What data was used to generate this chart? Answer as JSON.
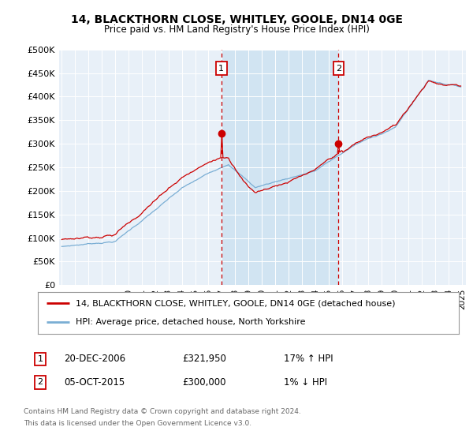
{
  "title1": "14, BLACKTHORN CLOSE, WHITLEY, GOOLE, DN14 0GE",
  "title2": "Price paid vs. HM Land Registry's House Price Index (HPI)",
  "legend1": "14, BLACKTHORN CLOSE, WHITLEY, GOOLE, DN14 0GE (detached house)",
  "legend2": "HPI: Average price, detached house, North Yorkshire",
  "sale1_date": "20-DEC-2006",
  "sale1_price": 321950,
  "sale1_price_str": "£321,950",
  "sale1_hpi_pct": "17% ↑ HPI",
  "sale2_date": "05-OCT-2015",
  "sale2_price": 300000,
  "sale2_price_str": "£300,000",
  "sale2_hpi_pct": "1% ↓ HPI",
  "footnote1": "Contains HM Land Registry data © Crown copyright and database right 2024.",
  "footnote2": "This data is licensed under the Open Government Licence v3.0.",
  "sale1_year": 2006.96,
  "sale2_year": 2015.75,
  "red_color": "#cc0000",
  "blue_color": "#7aaed4",
  "shade_color": "#dce9f5",
  "background_color": "#e8f0f8",
  "ylim_min": 0,
  "ylim_max": 500000,
  "xlim_left": 1994.8,
  "xlim_right": 2025.3,
  "year_start": 1995,
  "year_end": 2025
}
